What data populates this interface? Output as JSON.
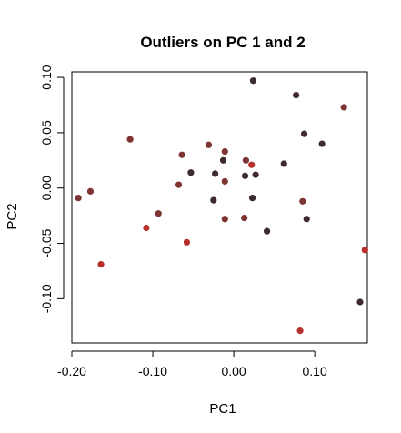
{
  "chart_data": {
    "type": "scatter",
    "title": "Outliers on PC 1 and 2",
    "xlabel": "PC1",
    "ylabel": "PC2",
    "xlim": [
      -0.2,
      0.165
    ],
    "ylim": [
      -0.14,
      0.105
    ],
    "x_ticks": [
      -0.2,
      -0.1,
      0.0,
      0.1
    ],
    "x_tick_labels": [
      "-0.20",
      "-0.10",
      "0.00",
      "0.10"
    ],
    "y_ticks": [
      -0.1,
      -0.05,
      0.0,
      0.05,
      0.1
    ],
    "y_tick_labels": [
      "-0.10",
      "-0.05",
      "0.00",
      "0.05",
      "0.10"
    ],
    "grid": false,
    "colors": {
      "dark": "#3d2b2d",
      "mid": "#7d3432",
      "red": "#b8302c"
    },
    "points": [
      {
        "x": -0.192,
        "y": -0.009,
        "color": "mid"
      },
      {
        "x": -0.177,
        "y": -0.003,
        "color": "mid"
      },
      {
        "x": -0.164,
        "y": -0.069,
        "color": "red"
      },
      {
        "x": -0.128,
        "y": 0.044,
        "color": "mid"
      },
      {
        "x": -0.108,
        "y": -0.036,
        "color": "red"
      },
      {
        "x": -0.093,
        "y": -0.023,
        "color": "mid"
      },
      {
        "x": -0.068,
        "y": 0.003,
        "color": "mid"
      },
      {
        "x": -0.064,
        "y": 0.03,
        "color": "mid"
      },
      {
        "x": -0.058,
        "y": -0.049,
        "color": "red"
      },
      {
        "x": -0.053,
        "y": 0.014,
        "color": "dark"
      },
      {
        "x": -0.031,
        "y": 0.039,
        "color": "mid"
      },
      {
        "x": -0.025,
        "y": -0.011,
        "color": "dark"
      },
      {
        "x": -0.023,
        "y": 0.013,
        "color": "dark"
      },
      {
        "x": -0.013,
        "y": 0.025,
        "color": "dark"
      },
      {
        "x": -0.011,
        "y": 0.033,
        "color": "mid"
      },
      {
        "x": -0.011,
        "y": 0.006,
        "color": "mid"
      },
      {
        "x": -0.011,
        "y": -0.028,
        "color": "mid"
      },
      {
        "x": 0.013,
        "y": -0.027,
        "color": "mid"
      },
      {
        "x": 0.014,
        "y": 0.011,
        "color": "dark"
      },
      {
        "x": 0.015,
        "y": 0.025,
        "color": "mid"
      },
      {
        "x": 0.022,
        "y": 0.021,
        "color": "red"
      },
      {
        "x": 0.023,
        "y": -0.009,
        "color": "dark"
      },
      {
        "x": 0.024,
        "y": 0.097,
        "color": "dark"
      },
      {
        "x": 0.027,
        "y": 0.012,
        "color": "dark"
      },
      {
        "x": 0.041,
        "y": -0.039,
        "color": "dark"
      },
      {
        "x": 0.062,
        "y": 0.022,
        "color": "dark"
      },
      {
        "x": 0.077,
        "y": 0.084,
        "color": "dark"
      },
      {
        "x": 0.082,
        "y": -0.129,
        "color": "red"
      },
      {
        "x": 0.085,
        "y": -0.012,
        "color": "mid"
      },
      {
        "x": 0.087,
        "y": 0.049,
        "color": "dark"
      },
      {
        "x": 0.09,
        "y": -0.028,
        "color": "dark"
      },
      {
        "x": 0.109,
        "y": 0.04,
        "color": "dark"
      },
      {
        "x": 0.136,
        "y": 0.073,
        "color": "mid"
      },
      {
        "x": 0.156,
        "y": -0.103,
        "color": "dark"
      },
      {
        "x": 0.162,
        "y": -0.056,
        "color": "red"
      }
    ]
  }
}
